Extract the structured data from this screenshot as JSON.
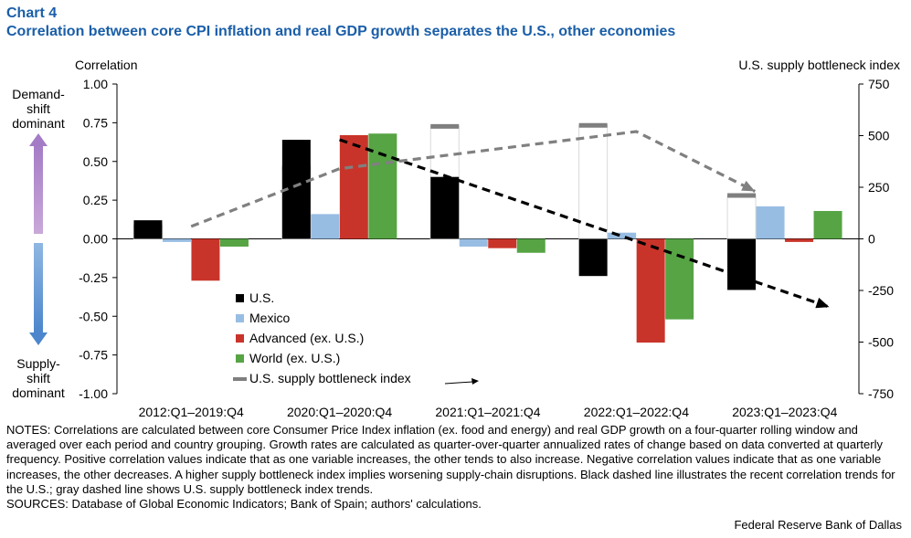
{
  "header": {
    "chart_label": "Chart 4",
    "title": "Correlation between core CPI inflation and real GDP growth separates the U.S., other economies"
  },
  "chart_data": {
    "type": "bar",
    "title": "Correlation between core CPI inflation and real GDP growth separates the U.S., other economies",
    "ylabel": "Correlation",
    "y2label": "U.S. supply bottleneck index",
    "ylim": [
      -1,
      1
    ],
    "y2lim": [
      -750,
      750
    ],
    "yticks": [
      1.0,
      0.75,
      0.5,
      0.25,
      0.0,
      -0.25,
      -0.5,
      -0.75,
      -1.0
    ],
    "ytick_labels": [
      "1.00",
      "0.75",
      "0.50",
      "0.25",
      "0.00",
      "-0.25",
      "-0.50",
      "-0.75",
      "-1.00"
    ],
    "y2ticks": [
      750,
      500,
      250,
      0,
      -250,
      -500,
      -750
    ],
    "y2tick_labels": [
      "750",
      "500",
      "250",
      "0",
      "-250",
      "-500",
      "-750"
    ],
    "categories": [
      "2012:Q1–2019:Q4",
      "2020:Q1–2020:Q4",
      "2021:Q1–2021:Q4",
      "2022:Q1–2022:Q4",
      "2023:Q1–2023:Q4"
    ],
    "series": [
      {
        "name": "U.S.",
        "color": "#000000",
        "values": [
          0.12,
          0.64,
          0.4,
          -0.24,
          -0.33
        ]
      },
      {
        "name": "Mexico",
        "color": "#98bde3",
        "values": [
          -0.02,
          0.16,
          -0.05,
          0.04,
          0.21
        ]
      },
      {
        "name": "Advanced (ex. U.S.)",
        "color": "#c9342a",
        "values": [
          -0.27,
          0.67,
          -0.06,
          -0.67,
          -0.02
        ]
      },
      {
        "name": "World (ex. U.S.)",
        "color": "#56a444",
        "values": [
          -0.05,
          0.68,
          -0.09,
          -0.52,
          0.18
        ]
      }
    ],
    "bottleneck": {
      "name": "U.S. supply bottleneck index",
      "color": "#7f7f7f",
      "values": [
        65,
        345,
        545,
        550,
        210
      ]
    },
    "trend_lines": [
      {
        "style": "black dashed arrow",
        "x": [
          1.0,
          4.3
        ],
        "y": [
          0.64,
          -0.44
        ]
      },
      {
        "style": "gray dashed arrow",
        "axis": "secondary",
        "x": [
          0.0,
          1.0,
          2.0,
          3.0,
          3.8
        ],
        "y": [
          60,
          340,
          430,
          520,
          230
        ]
      }
    ],
    "annotations": {
      "top": "Demand-shift dominant",
      "top_lines": [
        "Demand-",
        "shift",
        "dominant"
      ],
      "bottom": "Supply-shift dominant",
      "bottom_lines": [
        "Supply-",
        "shift",
        "dominant"
      ]
    },
    "legend_position": "lower-left inside plot",
    "grid": false
  },
  "notes": {
    "text": "NOTES: Correlations are calculated between core Consumer Price Index inflation (ex. food and energy) and real GDP growth on a four-quarter rolling window and averaged over each period and country grouping. Growth rates are calculated as quarter-over-quarter annualized rates of change based on data converted at quarterly frequency. Positive correlation values indicate that as one variable increases, the other tends to also increase. Negative correlation values indicate that as one variable increases, the other decreases. A higher supply bottleneck index implies worsening supply-chain disruptions. Black dashed line illustrates the recent correlation trends for the U.S.; gray dashed line shows U.S. supply bottleneck index trends.",
    "sources": "SOURCES: Database of Global Economic Indicators; Bank of Spain; authors' calculations."
  },
  "credit": "Federal Reserve Bank of Dallas"
}
